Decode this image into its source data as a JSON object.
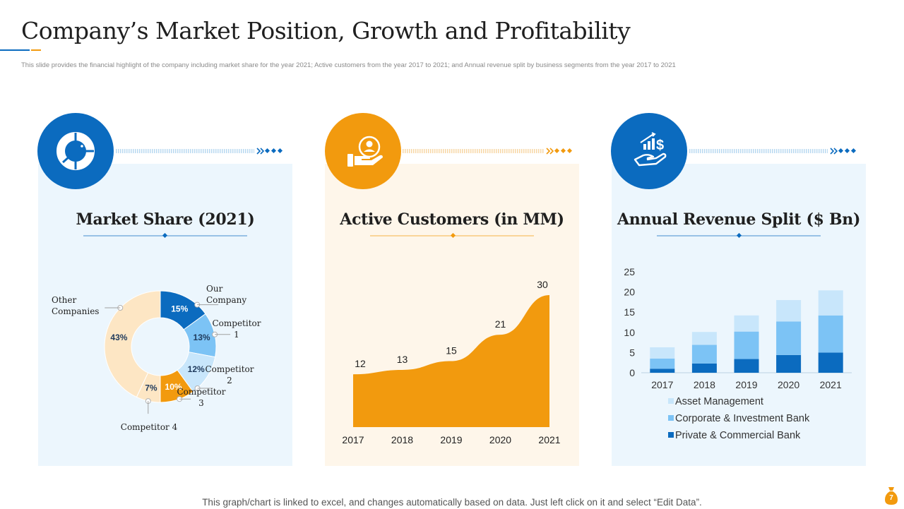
{
  "header": {
    "title": "Company’s Market Position, Growth and Profitability",
    "subtitle": "This slide provides the financial highlight of the company including market share for the year 2021; Active customers from the year 2017 to 2021; and Annual revenue split by business segments from the year 2017 to 2021"
  },
  "colors": {
    "blue": "#0b6bbf",
    "orange": "#f29a0e",
    "light_blue": "#7cc3f5",
    "pale_blue": "#c8e6fb",
    "cream": "#fde6c4"
  },
  "icons": {
    "market_share": "donut-chart-icon",
    "customers": "hand-user-icon",
    "revenue": "hand-dollar-growth-icon",
    "footer": "money-bag-icon"
  },
  "panels": {
    "market_share": {
      "title": "Market Share (2021)"
    },
    "customers": {
      "title": "Active Customers (in MM)"
    },
    "revenue": {
      "title": "Annual Revenue Split ($ Bn)"
    }
  },
  "chart_data": [
    {
      "type": "pie",
      "title": "Market Share (2021)",
      "slices": [
        {
          "label": "Our Company",
          "label_lines": [
            "Our",
            "Company"
          ],
          "value": 15,
          "value_label": "15%",
          "color": "#0b6bbf"
        },
        {
          "label": "Competitor 1",
          "label_lines": [
            "Competitor",
            "1"
          ],
          "value": 13,
          "value_label": "13%",
          "color": "#7cc3f5"
        },
        {
          "label": "Competitor 2",
          "label_lines": [
            "Competitor",
            "2"
          ],
          "value": 12,
          "value_label": "12%",
          "color": "#c8e6fb"
        },
        {
          "label": "Competitor 3",
          "label_lines": [
            "Competitor",
            "3"
          ],
          "value": 10,
          "value_label": "10%",
          "color": "#f29a0e"
        },
        {
          "label": "Competitor 4",
          "label_lines": [
            "Competitor  4"
          ],
          "value": 7,
          "value_label": "7%",
          "color": "#fde6c4"
        },
        {
          "label": "Other Companies",
          "label_lines": [
            "Other",
            "Companies"
          ],
          "value": 43,
          "value_label": "43%",
          "color": "#fde6c4"
        }
      ]
    },
    {
      "type": "area",
      "title": "Active Customers (in MM)",
      "x": [
        "2017",
        "2018",
        "2019",
        "2020",
        "2021"
      ],
      "values": [
        12,
        13,
        15,
        21,
        30
      ],
      "ylim": [
        0,
        30
      ],
      "color": "#f29a0e"
    },
    {
      "type": "bar",
      "stacked": true,
      "title": "Annual Revenue Split ($ Bn)",
      "categories": [
        "2017",
        "2018",
        "2019",
        "2020",
        "2021"
      ],
      "ylim": [
        0,
        25
      ],
      "yticks": [
        "25",
        "20",
        "15",
        "10",
        "5",
        "0"
      ],
      "legend_position": "bottom",
      "series": [
        {
          "name": "Private & Commercial Bank",
          "values": [
            1,
            2.3,
            3.4,
            4.4,
            5
          ],
          "color": "#0b6bbf"
        },
        {
          "name": "Corporate & Investment Bank",
          "values": [
            2.5,
            4.6,
            6.8,
            8.3,
            9.2
          ],
          "color": "#7cc3f5"
        },
        {
          "name": "Asset Management",
          "values": [
            2.8,
            3.2,
            4,
            5.3,
            6.2
          ],
          "color": "#c8e6fb"
        }
      ],
      "legend_order": [
        "Asset Management",
        "Corporate & Investment Bank",
        "Private & Commercial Bank"
      ]
    }
  ],
  "footer": {
    "note": "This graph/chart is linked to excel,  and changes automatically based on data. Just left click on it and select “Edit Data”.",
    "page_number": "7"
  }
}
